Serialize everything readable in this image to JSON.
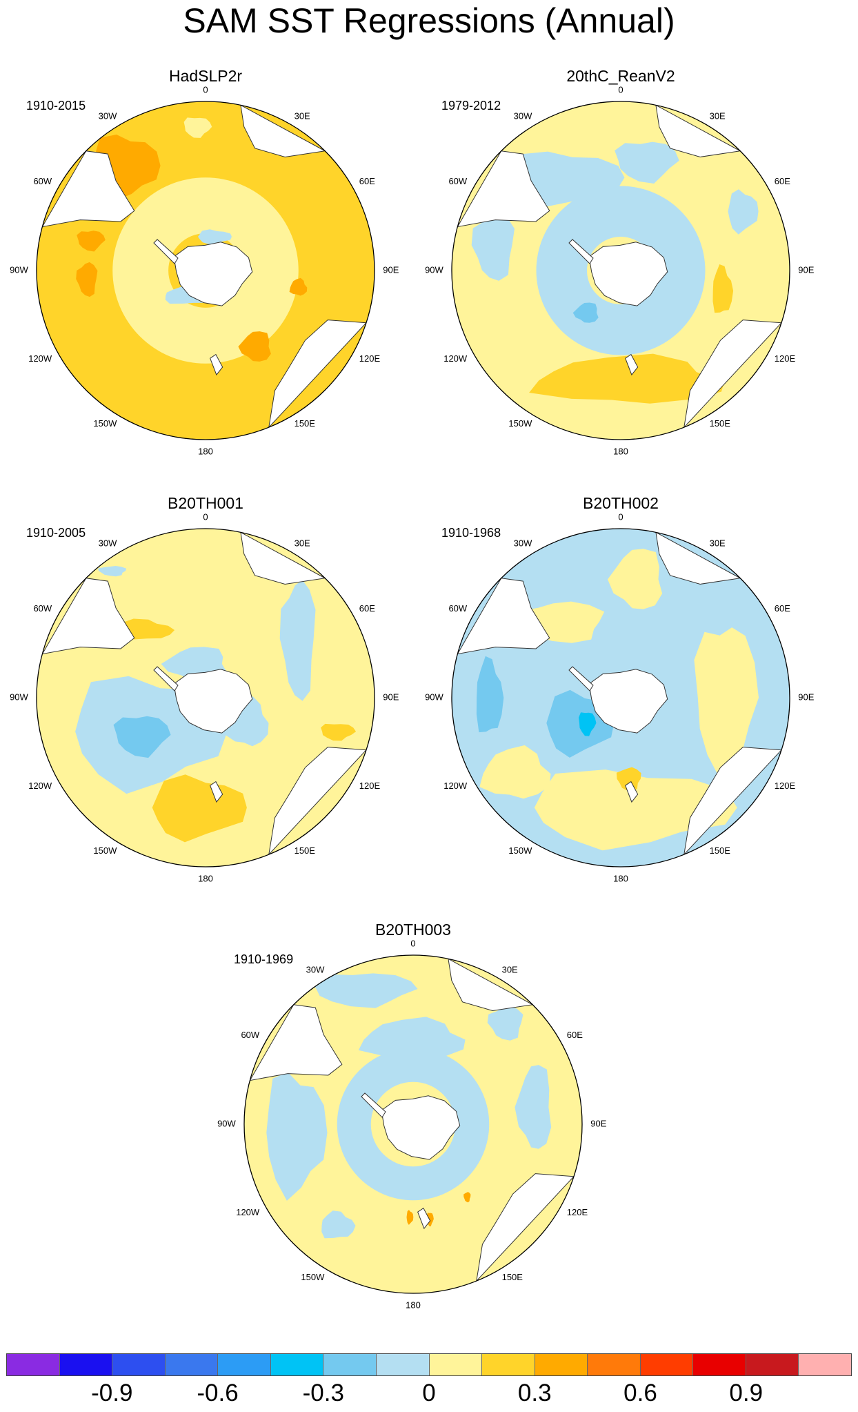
{
  "title": "SAM SST Regressions (Annual)",
  "panels": [
    {
      "name": "HadSLP2r",
      "years": "1910-2015",
      "scheme": "warm"
    },
    {
      "name": "20thC_ReanV2",
      "years": "1979-2012",
      "scheme": "mixed"
    },
    {
      "name": "B20TH001",
      "years": "1910-2005",
      "scheme": "mixed_cool"
    },
    {
      "name": "B20TH002",
      "years": "1910-1968",
      "scheme": "cool"
    },
    {
      "name": "B20TH003",
      "years": "1910-1969",
      "scheme": "neutral"
    }
  ],
  "longitude_labels": [
    "0",
    "30E",
    "60E",
    "90E",
    "120E",
    "150E",
    "180",
    "150W",
    "120W",
    "90W",
    "60W",
    "30W"
  ],
  "colorbar": {
    "colors": [
      "#8a2be2",
      "#1a10f0",
      "#2d4ff0",
      "#3a78ee",
      "#2c9cf5",
      "#00c3f5",
      "#74c9ef",
      "#b4dff2",
      "#fff49a",
      "#ffd42a",
      "#ffaa00",
      "#ff7a0a",
      "#ff3d00",
      "#e80000",
      "#c8191e",
      "#ffb0b0"
    ],
    "ticks": [
      "-0.9",
      "-0.6",
      "-0.3",
      "0",
      "0.3",
      "0.6",
      "0.9"
    ]
  }
}
